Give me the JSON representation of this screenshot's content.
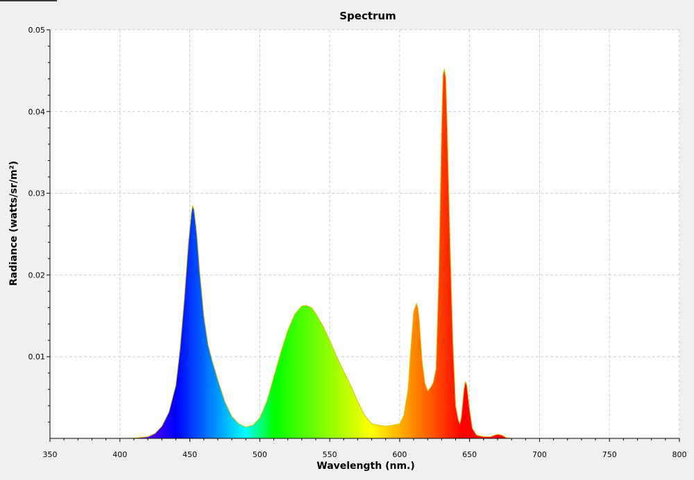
{
  "chart_data": {
    "type": "area",
    "title": "Spectrum",
    "xlabel": "Wavelength (nm.)",
    "ylabel": "Radiance (watts/sr/m²)",
    "xlim": [
      350,
      800
    ],
    "ylim": [
      0,
      0.05
    ],
    "x_ticks": [
      350,
      400,
      450,
      500,
      550,
      600,
      650,
      700,
      750,
      800
    ],
    "x_tick_labels": [
      "350",
      "400",
      "450",
      "500",
      "550",
      "600",
      "650",
      "700",
      "750",
      "800"
    ],
    "y_ticks": [
      0.01,
      0.02,
      0.03,
      0.04,
      0.05
    ],
    "y_tick_labels": [
      "0.01",
      "0.02",
      "0.03",
      "0.04",
      "0.05"
    ],
    "grid": true,
    "fill": "visible-spectrum gradient",
    "outline_color": "#e0c000",
    "series": [
      {
        "x": [
          380,
          400,
          410,
          420,
          425,
          430,
          435,
          440,
          443,
          446,
          449,
          451,
          452,
          453,
          455,
          457,
          460,
          463,
          466,
          470,
          475,
          480,
          485,
          490,
          495,
          500,
          505,
          510,
          515,
          520,
          525,
          530,
          533,
          537,
          540,
          545,
          550,
          555,
          560,
          565,
          570,
          575,
          580,
          585,
          590,
          595,
          600,
          603,
          606,
          608,
          610,
          612,
          613,
          614,
          616,
          618,
          620,
          622,
          624,
          626,
          628,
          630,
          631,
          632,
          633,
          634,
          636,
          638,
          640,
          642,
          643,
          644,
          646,
          647,
          648,
          650,
          652,
          655,
          660,
          665,
          668,
          670,
          673,
          676,
          680,
          700,
          780
        ],
        "y": [
          0,
          0,
          3e-05,
          0.0002,
          0.0006,
          0.0015,
          0.0032,
          0.0065,
          0.011,
          0.017,
          0.024,
          0.0275,
          0.0285,
          0.028,
          0.025,
          0.0205,
          0.015,
          0.0115,
          0.0095,
          0.0072,
          0.0045,
          0.0027,
          0.0018,
          0.0014,
          0.0016,
          0.0025,
          0.0045,
          0.0075,
          0.0105,
          0.0132,
          0.0152,
          0.0162,
          0.0163,
          0.016,
          0.0153,
          0.0138,
          0.012,
          0.01,
          0.0082,
          0.0065,
          0.0045,
          0.0028,
          0.0018,
          0.0016,
          0.0015,
          0.0016,
          0.0018,
          0.0028,
          0.006,
          0.011,
          0.0155,
          0.0165,
          0.016,
          0.0145,
          0.0095,
          0.0068,
          0.0058,
          0.0062,
          0.0068,
          0.0085,
          0.02,
          0.038,
          0.0445,
          0.0452,
          0.044,
          0.038,
          0.024,
          0.012,
          0.004,
          0.0022,
          0.0018,
          0.0025,
          0.006,
          0.007,
          0.0065,
          0.0035,
          0.0012,
          0.0004,
          0.0002,
          0.0002,
          0.0004,
          0.0005,
          0.0004,
          0.0001,
          0,
          0,
          0
        ]
      }
    ]
  }
}
